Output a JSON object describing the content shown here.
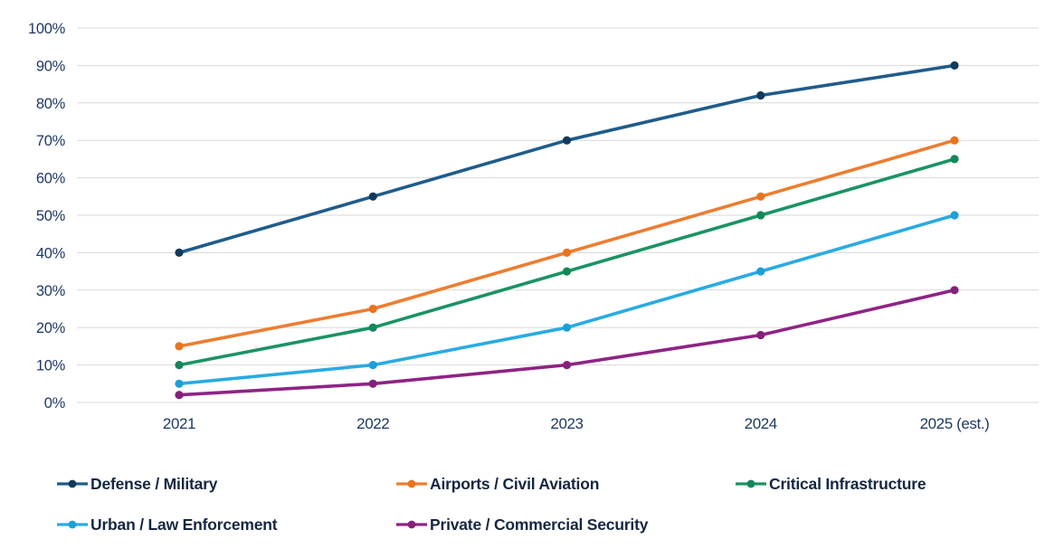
{
  "chart_data": {
    "type": "line",
    "categories": [
      "2021",
      "2022",
      "2023",
      "2024",
      "2025 (est.)"
    ],
    "series": [
      {
        "name": "Defense / Military",
        "values": [
          40,
          55,
          70,
          82,
          90
        ],
        "color": "#1F5C8B",
        "marker_color": "#123A5C"
      },
      {
        "name": "Airports / Civil Aviation",
        "values": [
          15,
          25,
          40,
          55,
          70
        ],
        "color": "#ED7D31",
        "marker_color": "#E8741F"
      },
      {
        "name": "Critical Infrastructure",
        "values": [
          10,
          20,
          35,
          50,
          65
        ],
        "color": "#1B9364",
        "marker_color": "#14875A"
      },
      {
        "name": "Urban / Law Enforcement",
        "values": [
          5,
          10,
          20,
          35,
          50
        ],
        "color": "#29ABE2",
        "marker_color": "#1D9FD8"
      },
      {
        "name": "Private / Commercial Security",
        "values": [
          2,
          5,
          10,
          18,
          30
        ],
        "color": "#8E2484",
        "marker_color": "#84217B"
      }
    ],
    "title": "",
    "xlabel": "",
    "ylabel": "",
    "ylim": [
      0,
      100
    ],
    "ytick_step": 10,
    "y_tick_labels": [
      "0%",
      "10%",
      "20%",
      "30%",
      "40%",
      "50%",
      "60%",
      "70%",
      "80%",
      "90%",
      "100%"
    ],
    "grid": true,
    "legend_position": "bottom"
  },
  "colors": {
    "axis_text": "#1F3864",
    "legend_text": "#152741",
    "gridline": "#D9D9D9",
    "background": "#FFFFFF"
  }
}
